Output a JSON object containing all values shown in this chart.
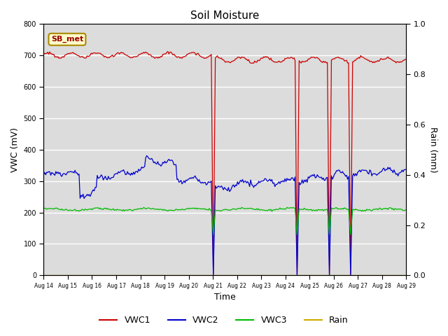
{
  "title": "Soil Moisture",
  "ylabel_left": "VWC (mV)",
  "ylabel_right": "Rain (mm)",
  "xlabel": "Time",
  "ylim_left": [
    0,
    800
  ],
  "ylim_right": [
    0,
    1.0
  ],
  "x_tick_labels": [
    "Aug 14",
    "Aug 15",
    "Aug 16",
    "Aug 17",
    "Aug 18",
    "Aug 19",
    "Aug 20",
    "Aug 21",
    "Aug 22",
    "Aug 23",
    "Aug 24",
    "Aug 25",
    "Aug 26",
    "Aug 27",
    "Aug 28",
    "Aug 29"
  ],
  "bg_color": "#dcdcdc",
  "fig_color": "#ffffff",
  "annotation_label": "SB_met",
  "vwc1_color": "#cc0000",
  "vwc2_color": "#0000cc",
  "vwc3_color": "#00bb00",
  "rain_color": "#ccaa00",
  "rain_spike_times_days": [
    7.0,
    10.5,
    11.8,
    12.7
  ],
  "vwc1_base": 695,
  "vwc2_base": 315,
  "vwc3_base": 210
}
